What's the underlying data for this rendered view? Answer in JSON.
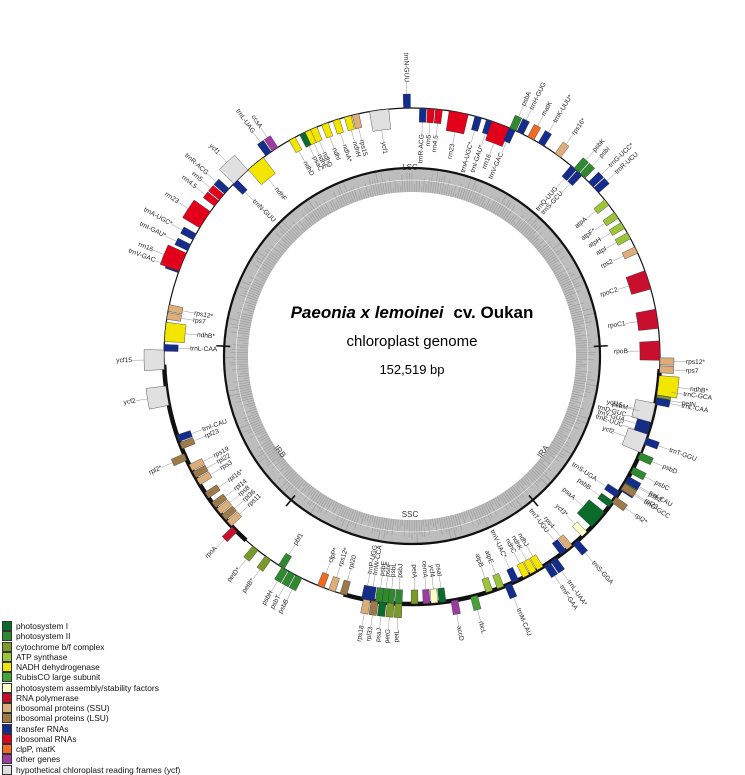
{
  "title_italic": "Paeonia x lemoinei",
  "title_suffix": "cv. Oukan",
  "subtitle": "chloroplast genome",
  "size": "152,519 bp",
  "regions": [
    "LSC",
    "IRA",
    "SSC",
    "IRB"
  ],
  "legend": [
    {
      "label": "photosystem I",
      "color": "#0b6b2b"
    },
    {
      "label": "photosystem II",
      "color": "#2f8a2f"
    },
    {
      "label": "cytochrome b/f complex",
      "color": "#7a9a2a"
    },
    {
      "label": "ATP synthase",
      "color": "#9cc43a"
    },
    {
      "label": "NADH dehydrogenase",
      "color": "#f2e500"
    },
    {
      "label": "RubisCO large subunit",
      "color": "#46a336"
    },
    {
      "label": "photosystem assembly/stability factors",
      "color": "#ffffc8"
    },
    {
      "label": "RNA polymerase",
      "color": "#c8102e"
    },
    {
      "label": "ribosomal proteins (SSU)",
      "color": "#dcae7a"
    },
    {
      "label": "ribosomal proteins (LSU)",
      "color": "#9c7a4a"
    },
    {
      "label": "transfer RNAs",
      "color": "#142c8c"
    },
    {
      "label": "ribosomal RNAs",
      "color": "#e3001b"
    },
    {
      "label": "clpP, matK",
      "color": "#f26a21"
    },
    {
      "label": "other genes",
      "color": "#9a3ca0"
    },
    {
      "label": "hypothetical chloroplast reading frames (ycf)",
      "color": "#e0e0e0"
    }
  ],
  "genes": [
    {
      "name": "psbA",
      "deg": 0,
      "side": "out",
      "cat": 1
    },
    {
      "name": "trnH-GUG",
      "deg": 2,
      "side": "out",
      "cat": 10
    },
    {
      "name": "matK",
      "deg": 5,
      "side": "out",
      "cat": 12
    },
    {
      "name": "trnK-UUU*",
      "deg": 8,
      "side": "out",
      "cat": 10
    },
    {
      "name": "rps16*",
      "deg": 13,
      "side": "out",
      "cat": 8
    },
    {
      "name": "trnQ-UUG",
      "deg": 18,
      "side": "in",
      "cat": 10
    },
    {
      "name": "trnS-GCU",
      "deg": 20,
      "side": "in",
      "cat": 10
    },
    {
      "name": "psbK",
      "deg": 19,
      "side": "out",
      "cat": 1
    },
    {
      "name": "psbI",
      "deg": 21,
      "side": "out",
      "cat": 1
    },
    {
      "name": "trnG-UCC*",
      "deg": 24,
      "side": "out",
      "cat": 10
    },
    {
      "name": "trnR-UCU",
      "deg": 26,
      "side": "out",
      "cat": 10
    },
    {
      "name": "atpA",
      "deg": 30,
      "side": "in",
      "cat": 3
    },
    {
      "name": "atpF*",
      "deg": 34,
      "side": "in",
      "cat": 3
    },
    {
      "name": "atpH",
      "deg": 37,
      "side": "in",
      "cat": 3
    },
    {
      "name": "atpI",
      "deg": 40,
      "side": "in",
      "cat": 3
    },
    {
      "name": "rps2",
      "deg": 44,
      "side": "in",
      "cat": 8
    },
    {
      "name": "rpoC2",
      "deg": 52,
      "side": "in",
      "cat": 7
    },
    {
      "name": "rpoC1",
      "deg": 62,
      "side": "in",
      "cat": 7
    },
    {
      "name": "rpoB",
      "deg": 70,
      "side": "in",
      "cat": 7
    },
    {
      "name": "trnC-GCA",
      "deg": 80,
      "side": "out",
      "cat": 10
    },
    {
      "name": "petN",
      "deg": 82,
      "side": "out",
      "cat": 2
    },
    {
      "name": "psbM",
      "deg": 86,
      "side": "in",
      "cat": 1
    },
    {
      "name": "trnD-GUC",
      "deg": 88,
      "side": "in",
      "cat": 10
    },
    {
      "name": "trnY-GUA",
      "deg": 89.5,
      "side": "in",
      "cat": 10
    },
    {
      "name": "trnE-UUC",
      "deg": 91,
      "side": "in",
      "cat": 10
    },
    {
      "name": "trnT-GGU",
      "deg": 93,
      "side": "out",
      "cat": 10
    },
    {
      "name": "psbD",
      "deg": 97,
      "side": "out",
      "cat": 1
    },
    {
      "name": "psbC",
      "deg": 101,
      "side": "out",
      "cat": 1
    },
    {
      "name": "psbZ",
      "deg": 104,
      "side": "out",
      "cat": 1
    },
    {
      "name": "trnG-GCC",
      "deg": 106,
      "side": "out",
      "cat": 10
    },
    {
      "name": "trnS-UGA",
      "deg": 108,
      "side": "in",
      "cat": 10
    },
    {
      "name": "psbB",
      "deg": 111,
      "side": "in",
      "cat": 0
    },
    {
      "name": "psaA",
      "deg": 116,
      "side": "in",
      "cat": 0
    },
    {
      "name": "ycf3*",
      "deg": 121,
      "side": "in",
      "cat": 6
    },
    {
      "name": "trnS-GGA",
      "deg": 124,
      "side": "out",
      "cat": 10
    },
    {
      "name": "rps4",
      "deg": 126,
      "side": "in",
      "cat": 8
    },
    {
      "name": "trnT-UGU",
      "deg": 128,
      "side": "in",
      "cat": 10
    },
    {
      "name": "trnL-UAA*",
      "deg": 131,
      "side": "out",
      "cat": 10
    },
    {
      "name": "trnF-GAA",
      "deg": 133,
      "side": "out",
      "cat": 10
    },
    {
      "name": "ndhJ",
      "deg": 135,
      "side": "in",
      "cat": 4
    },
    {
      "name": "ndhK",
      "deg": 137,
      "side": "in",
      "cat": 4
    },
    {
      "name": "ndhC",
      "deg": 139,
      "side": "in",
      "cat": 4
    },
    {
      "name": "trnV-UAC*",
      "deg": 142,
      "side": "in",
      "cat": 10
    },
    {
      "name": "trnM-CAU",
      "deg": 144,
      "side": "out",
      "cat": 10
    },
    {
      "name": "atpE",
      "deg": 146,
      "side": "in",
      "cat": 3
    },
    {
      "name": "atpB",
      "deg": 149,
      "side": "in",
      "cat": 3
    },
    {
      "name": "rbcL",
      "deg": 153,
      "side": "out",
      "cat": 5
    },
    {
      "name": "accD",
      "deg": 158,
      "side": "out",
      "cat": 13
    },
    {
      "name": "psaI",
      "deg": 161,
      "side": "in",
      "cat": 0
    },
    {
      "name": "ycf4",
      "deg": 163,
      "side": "in",
      "cat": 6
    },
    {
      "name": "cemA",
      "deg": 165,
      "side": "in",
      "cat": 13
    },
    {
      "name": "petA",
      "deg": 168,
      "side": "in",
      "cat": 2
    },
    {
      "name": "psbJ",
      "deg": 172,
      "side": "in",
      "cat": 1
    },
    {
      "name": "psbL",
      "deg": 174,
      "side": "in",
      "cat": 1
    },
    {
      "name": "psbF",
      "deg": 175.5,
      "side": "in",
      "cat": 1
    },
    {
      "name": "psbE",
      "deg": 177,
      "side": "in",
      "cat": 1
    },
    {
      "name": "trnW-CCA",
      "deg": 179,
      "side": "in",
      "cat": 10
    },
    {
      "name": "trnP-UGG",
      "deg": 180.5,
      "side": "in",
      "cat": 10
    },
    {
      "name": "petL",
      "deg": 172,
      "side": "out",
      "cat": 2
    },
    {
      "name": "petG",
      "deg": 174,
      "side": "out",
      "cat": 2
    },
    {
      "name": "psaJ",
      "deg": 176,
      "side": "out",
      "cat": 0
    },
    {
      "name": "rpl33",
      "deg": 178,
      "side": "out",
      "cat": 9
    },
    {
      "name": "rps18",
      "deg": 180,
      "side": "out",
      "cat": 8
    },
    {
      "name": "rpl20",
      "deg": 186,
      "side": "in",
      "cat": 9
    },
    {
      "name": "rps12*",
      "deg": 189,
      "side": "in",
      "cat": 8
    },
    {
      "name": "clpP*",
      "deg": 192,
      "side": "in",
      "cat": 12
    },
    {
      "name": "psbB",
      "deg": 198,
      "side": "out",
      "cat": 1
    },
    {
      "name": "psbT",
      "deg": 200,
      "side": "out",
      "cat": 1
    },
    {
      "name": "psbH",
      "deg": 202,
      "side": "out",
      "cat": 1
    },
    {
      "name": "pbf1",
      "deg": 203,
      "side": "in",
      "cat": 1
    },
    {
      "name": "petB*",
      "deg": 207,
      "side": "out",
      "cat": 2
    },
    {
      "name": "petD*",
      "deg": 211,
      "side": "out",
      "cat": 2
    },
    {
      "name": "rpoA",
      "deg": 218,
      "side": "out",
      "cat": 7
    },
    {
      "name": "rps11",
      "deg": 220,
      "side": "in",
      "cat": 8
    },
    {
      "name": "rpl36",
      "deg": 222,
      "side": "in",
      "cat": 9
    },
    {
      "name": "rps8",
      "deg": 224,
      "side": "in",
      "cat": 8
    },
    {
      "name": "rpl14",
      "deg": 226,
      "side": "in",
      "cat": 9
    },
    {
      "name": "rpl16*",
      "deg": 229,
      "side": "in",
      "cat": 9
    },
    {
      "name": "rps3",
      "deg": 233,
      "side": "in",
      "cat": 8
    },
    {
      "name": "rpl22",
      "deg": 235,
      "side": "in",
      "cat": 9
    },
    {
      "name": "rps19",
      "deg": 237,
      "side": "in",
      "cat": 8
    },
    {
      "name": "rpl2*",
      "deg": 240,
      "side": "out",
      "cat": 9
    },
    {
      "name": "rpl23",
      "deg": 243,
      "side": "in",
      "cat": 9
    },
    {
      "name": "trnI-CAU",
      "deg": 245,
      "side": "in",
      "cat": 10
    },
    {
      "name": "ycf2",
      "deg": 256,
      "side": "out",
      "cat": 14
    },
    {
      "name": "ycf15",
      "deg": 265,
      "side": "out",
      "cat": 14
    },
    {
      "name": "trnL-CAA",
      "deg": 268,
      "side": "in",
      "cat": 10
    },
    {
      "name": "ndhB*",
      "deg": 272,
      "side": "in",
      "cat": 4
    },
    {
      "name": "rps7",
      "deg": 276,
      "side": "in",
      "cat": 8
    },
    {
      "name": "rps12*",
      "deg": 278,
      "side": "in",
      "cat": 8
    },
    {
      "name": "trnV-GAC",
      "deg": 288,
      "side": "out",
      "cat": 10
    },
    {
      "name": "rrn16",
      "deg": 290,
      "side": "out",
      "cat": 11
    },
    {
      "name": "trnI-GAU*",
      "deg": 294,
      "side": "out",
      "cat": 10
    },
    {
      "name": "trnA-UGC*",
      "deg": 297,
      "side": "out",
      "cat": 10
    },
    {
      "name": "rrn23",
      "deg": 302,
      "side": "out",
      "cat": 11
    },
    {
      "name": "rrn4.5",
      "deg": 307,
      "side": "out",
      "cat": 11
    },
    {
      "name": "rrn5",
      "deg": 309,
      "side": "out",
      "cat": 11
    },
    {
      "name": "trnR-ACG",
      "deg": 311,
      "side": "out",
      "cat": 10
    },
    {
      "name": "trnN-GUU",
      "deg": 314,
      "side": "in",
      "cat": 10
    },
    {
      "name": "ycf1",
      "deg": 316,
      "side": "out",
      "cat": 14
    },
    {
      "name": "ndhF",
      "deg": 321,
      "side": "in",
      "cat": 4
    },
    {
      "name": "trnL-UAG",
      "deg": 325,
      "side": "out",
      "cat": 10
    },
    {
      "name": "ccsA",
      "deg": 327,
      "side": "out",
      "cat": 13
    },
    {
      "name": "ndhD",
      "deg": 332,
      "side": "in",
      "cat": 4
    },
    {
      "name": "psaC",
      "deg": 335,
      "side": "in",
      "cat": 0
    },
    {
      "name": "ndhE",
      "deg": 336.5,
      "side": "in",
      "cat": 4
    },
    {
      "name": "ndhG",
      "deg": 338,
      "side": "in",
      "cat": 4
    },
    {
      "name": "ndhI",
      "deg": 341,
      "side": "in",
      "cat": 4
    },
    {
      "name": "ndhA*",
      "deg": 344,
      "side": "in",
      "cat": 4
    },
    {
      "name": "ndhH",
      "deg": 347,
      "side": "in",
      "cat": 4
    },
    {
      "name": "rps15",
      "deg": 349,
      "side": "in",
      "cat": 8
    },
    {
      "name": "ycf1",
      "deg": 355,
      "side": "in",
      "cat": 14
    },
    {
      "name": "trnN-GUU",
      "deg": 362,
      "side": "out",
      "cat": 10
    },
    {
      "name": "trnR-ACG",
      "deg": 366,
      "side": "in",
      "cat": 10
    },
    {
      "name": "rrn5",
      "deg": 368,
      "side": "in",
      "cat": 11
    },
    {
      "name": "rrn4.5",
      "deg": 370,
      "side": "in",
      "cat": 11
    },
    {
      "name": "rrn23",
      "deg": 375,
      "side": "in",
      "cat": 11
    },
    {
      "name": "trnA-UGC*",
      "deg": 380,
      "side": "in",
      "cat": 10
    },
    {
      "name": "trnI-GAU*",
      "deg": 383,
      "side": "in",
      "cat": 10
    },
    {
      "name": "rrn16",
      "deg": 386,
      "side": "in",
      "cat": 11
    },
    {
      "name": "trnV-GAC",
      "deg": 389,
      "side": "in",
      "cat": 10
    }
  ],
  "ir_genes": [
    {
      "name": "rpl2*",
      "deg": 34,
      "side": "out",
      "cat": 9
    },
    {
      "name": "rpl23",
      "deg": 30,
      "side": "out",
      "cat": 9
    },
    {
      "name": "trnI-CAU",
      "deg": 28,
      "side": "out",
      "cat": 10
    },
    {
      "name": "ycf2",
      "deg": 18,
      "side": "in",
      "cat": 14
    },
    {
      "name": "ycf15",
      "deg": 10,
      "side": "in",
      "cat": 14
    },
    {
      "name": "trnL-CAA",
      "deg": 7,
      "side": "out",
      "cat": 10
    },
    {
      "name": "ndhB*",
      "deg": 3,
      "side": "out",
      "cat": 4
    },
    {
      "name": "rps7",
      "deg": -1,
      "side": "out",
      "cat": 8
    },
    {
      "name": "rps12*",
      "deg": -3,
      "side": "out",
      "cat": 8
    }
  ]
}
